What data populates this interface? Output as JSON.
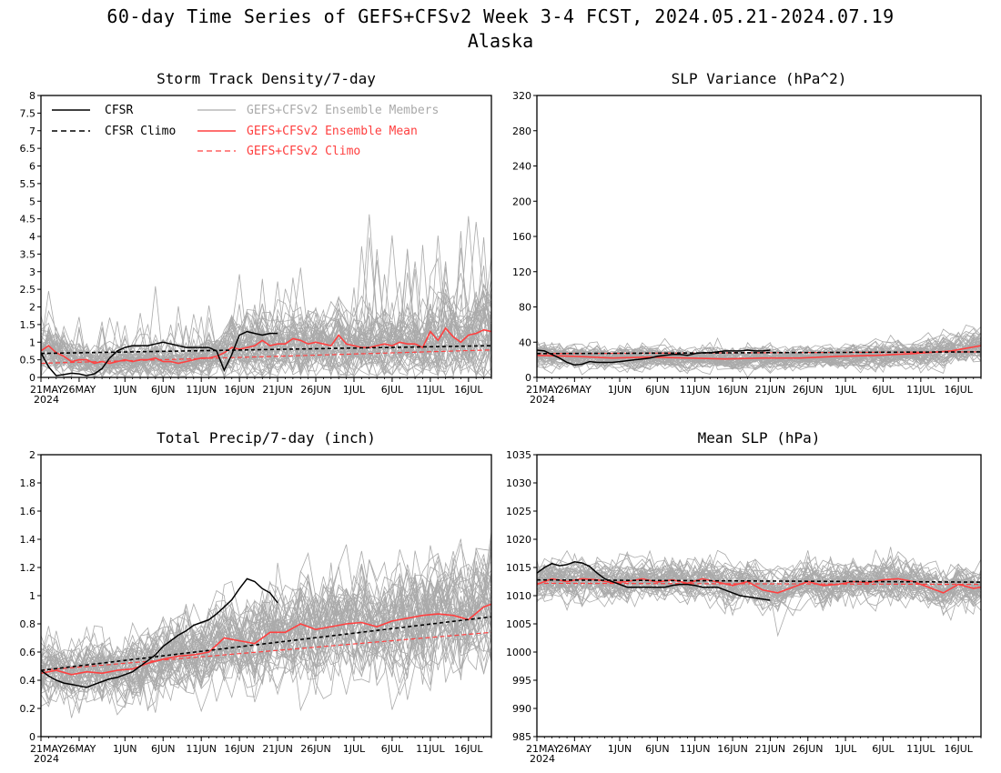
{
  "title": "60-day Time Series of GEFS+CFSv2 Week 3-4 FCST, 2024.05.21-2024.07.19",
  "region": "Alaska",
  "colors": {
    "cfsr": "#000000",
    "members": "#aaaaaa",
    "ens_mean": "#ff4040",
    "gefs_climo": "#ff4040"
  },
  "legend": {
    "cfsr": "CFSR",
    "cfsr_climo": "CFSR Climo",
    "members": "GEFS+CFSv2 Ensemble Members",
    "ens_mean": "GEFS+CFSv2 Ensemble Mean",
    "gefs_climo": "GEFS+CFSv2 Climo",
    "placement": "top-left"
  },
  "x_axis": {
    "ticks": [
      {
        "day": 0,
        "label": "21MAY"
      },
      {
        "day": 5,
        "label": "26MAY"
      },
      {
        "day": 11,
        "label": "1JUN"
      },
      {
        "day": 16,
        "label": "6JUN"
      },
      {
        "day": 21,
        "label": "11JUN"
      },
      {
        "day": 26,
        "label": "16JUN"
      },
      {
        "day": 31,
        "label": "21JUN"
      },
      {
        "day": 36,
        "label": "26JUN"
      },
      {
        "day": 41,
        "label": "1JUL"
      },
      {
        "day": 46,
        "label": "6JUL"
      },
      {
        "day": 51,
        "label": "11JUL"
      },
      {
        "day": 56,
        "label": "16JUL"
      }
    ],
    "year_label": "2024",
    "range": [
      0,
      59
    ]
  },
  "chart_data": [
    {
      "type": "line",
      "title": "Storm Track Density/7-day",
      "ylim": [
        0,
        8
      ],
      "yticks": [
        0,
        0.5,
        1,
        1.5,
        2,
        2.5,
        3,
        3.5,
        4,
        4.5,
        5,
        5.5,
        6,
        6.5,
        7,
        7.5,
        8
      ],
      "show_legend": true,
      "series": {
        "cfsr": {
          "x": [
            0,
            1,
            2,
            3,
            4,
            5,
            6,
            7,
            8,
            9,
            10,
            11,
            12,
            13,
            14,
            15,
            16,
            17,
            18,
            19,
            20,
            21,
            22,
            23,
            24,
            25,
            26,
            27,
            28,
            29,
            30,
            31
          ],
          "y": [
            0.7,
            0.3,
            0.05,
            0.08,
            0.12,
            0.1,
            0.05,
            0.1,
            0.25,
            0.55,
            0.75,
            0.85,
            0.9,
            0.9,
            0.9,
            0.95,
            1.0,
            0.95,
            0.9,
            0.85,
            0.85,
            0.85,
            0.85,
            0.75,
            0.2,
            0.65,
            1.2,
            1.3,
            1.25,
            1.2,
            1.25,
            1.25
          ]
        },
        "cfsr_climo": {
          "x": [
            0,
            59
          ],
          "y": [
            0.68,
            0.9
          ]
        },
        "ens_mean": {
          "x": [
            0,
            1,
            2,
            3,
            4,
            5,
            6,
            7,
            8,
            9,
            10,
            11,
            12,
            13,
            14,
            15,
            16,
            17,
            18,
            19,
            20,
            21,
            22,
            23,
            24,
            25,
            26,
            27,
            28,
            29,
            30,
            31,
            32,
            33,
            34,
            35,
            36,
            37,
            38,
            39,
            40,
            41,
            42,
            43,
            44,
            45,
            46,
            47,
            48,
            49,
            50,
            51,
            52,
            53,
            54,
            55,
            56,
            57,
            58,
            59
          ],
          "y": [
            0.75,
            0.9,
            0.7,
            0.6,
            0.45,
            0.5,
            0.5,
            0.4,
            0.45,
            0.4,
            0.45,
            0.5,
            0.45,
            0.5,
            0.5,
            0.55,
            0.45,
            0.45,
            0.4,
            0.45,
            0.5,
            0.55,
            0.55,
            0.6,
            0.7,
            0.85,
            0.8,
            0.85,
            0.9,
            1.05,
            0.9,
            0.95,
            0.95,
            1.1,
            1.05,
            0.95,
            1.0,
            0.95,
            0.9,
            1.2,
            0.95,
            0.9,
            0.85,
            0.85,
            0.9,
            0.95,
            0.9,
            1.0,
            0.95,
            0.95,
            0.85,
            1.3,
            1.05,
            1.4,
            1.15,
            1.0,
            1.2,
            1.25,
            1.35,
            1.3
          ]
        },
        "gefs_climo": {
          "x": [
            0,
            59
          ],
          "y": [
            0.4,
            0.78
          ]
        },
        "members": {
          "n": 48,
          "spread": 0.42,
          "seed": 101
        }
      }
    },
    {
      "type": "line",
      "title": "SLP Variance (hPa^2)",
      "ylim": [
        0,
        320
      ],
      "yticks": [
        0,
        40,
        80,
        120,
        160,
        200,
        240,
        280,
        320
      ],
      "show_legend": false,
      "series": {
        "cfsr": {
          "x": [
            0,
            1,
            2,
            3,
            4,
            5,
            6,
            7,
            8,
            9,
            10,
            11,
            12,
            13,
            14,
            15,
            16,
            17,
            18,
            19,
            20,
            21,
            22,
            23,
            24,
            25,
            26,
            27,
            28,
            29,
            30,
            31
          ],
          "y": [
            31,
            30,
            26,
            22,
            17,
            14,
            15,
            18,
            17,
            17,
            17,
            18,
            19,
            20,
            21,
            22,
            24,
            25,
            26,
            26,
            25,
            27,
            28,
            28,
            29,
            30,
            30,
            30,
            31,
            30,
            30,
            31
          ]
        },
        "cfsr_climo": {
          "x": [
            0,
            59
          ],
          "y": [
            27,
            29
          ]
        },
        "ens_mean": {
          "x": [
            0,
            5,
            10,
            15,
            20,
            25,
            30,
            35,
            40,
            45,
            50,
            55,
            59
          ],
          "y": [
            25,
            24,
            22,
            23,
            22,
            21,
            22,
            22,
            24,
            25,
            27,
            30,
            36
          ]
        },
        "gefs_climo": {
          "x": [
            0,
            59
          ],
          "y": [
            27,
            29
          ]
        },
        "members": {
          "n": 48,
          "spread": 0.38,
          "seed": 202
        }
      }
    },
    {
      "type": "line",
      "title": "Total Precip/7-day (inch)",
      "ylim": [
        0,
        2
      ],
      "yticks": [
        0,
        0.2,
        0.4,
        0.6,
        0.8,
        1,
        1.2,
        1.4,
        1.6,
        1.8,
        2
      ],
      "show_legend": false,
      "series": {
        "cfsr": {
          "x": [
            0,
            1,
            2,
            3,
            4,
            5,
            6,
            7,
            8,
            9,
            10,
            11,
            12,
            13,
            14,
            15,
            16,
            17,
            18,
            19,
            20,
            21,
            22,
            23,
            24,
            25,
            26,
            27,
            28,
            29,
            30,
            31
          ],
          "y": [
            0.47,
            0.43,
            0.4,
            0.38,
            0.37,
            0.36,
            0.35,
            0.37,
            0.39,
            0.41,
            0.42,
            0.44,
            0.46,
            0.5,
            0.54,
            0.58,
            0.64,
            0.68,
            0.72,
            0.75,
            0.79,
            0.81,
            0.83,
            0.87,
            0.92,
            0.97,
            1.05,
            1.12,
            1.1,
            1.05,
            1.02,
            0.95
          ]
        },
        "cfsr_climo": {
          "x": [
            0,
            59
          ],
          "y": [
            0.47,
            0.85
          ]
        },
        "ens_mean": {
          "x": [
            0,
            2,
            4,
            6,
            8,
            10,
            12,
            14,
            16,
            18,
            20,
            22,
            24,
            26,
            28,
            30,
            32,
            34,
            36,
            38,
            40,
            42,
            44,
            46,
            48,
            50,
            52,
            54,
            56,
            58,
            59
          ],
          "y": [
            0.45,
            0.47,
            0.44,
            0.46,
            0.45,
            0.47,
            0.48,
            0.52,
            0.55,
            0.57,
            0.58,
            0.6,
            0.7,
            0.68,
            0.66,
            0.74,
            0.74,
            0.8,
            0.76,
            0.78,
            0.8,
            0.81,
            0.78,
            0.82,
            0.84,
            0.86,
            0.87,
            0.86,
            0.83,
            0.92,
            0.94
          ]
        },
        "gefs_climo": {
          "x": [
            0,
            59
          ],
          "y": [
            0.47,
            0.74
          ]
        },
        "members": {
          "n": 48,
          "spread": 0.32,
          "seed": 303
        }
      }
    },
    {
      "type": "line",
      "title": "Mean SLP (hPa)",
      "ylim": [
        985,
        1035
      ],
      "yticks": [
        985,
        990,
        995,
        1000,
        1005,
        1010,
        1015,
        1020,
        1025,
        1030,
        1035
      ],
      "show_legend": false,
      "series": {
        "cfsr": {
          "x": [
            0,
            1,
            2,
            3,
            4,
            5,
            6,
            7,
            8,
            9,
            10,
            11,
            12,
            13,
            14,
            15,
            16,
            17,
            18,
            19,
            20,
            21,
            22,
            23,
            24,
            25,
            26,
            27,
            28,
            29,
            30,
            31
          ],
          "y": [
            1014,
            1015,
            1015.7,
            1015.3,
            1015.5,
            1016,
            1015.8,
            1015.2,
            1014,
            1013,
            1012.5,
            1012,
            1011.5,
            1011.5,
            1011.5,
            1011.5,
            1011.5,
            1011.5,
            1011.8,
            1012,
            1012,
            1011.8,
            1011.5,
            1011.5,
            1011.5,
            1011,
            1010.5,
            1010,
            1009.8,
            1009.6,
            1009.4,
            1009.2
          ]
        },
        "cfsr_climo": {
          "x": [
            0,
            59
          ],
          "y": [
            1012.8,
            1012.4
          ]
        },
        "ens_mean": {
          "x": [
            0,
            2,
            4,
            6,
            8,
            10,
            12,
            14,
            16,
            18,
            20,
            22,
            24,
            26,
            28,
            30,
            32,
            34,
            36,
            38,
            40,
            42,
            44,
            46,
            48,
            50,
            52,
            54,
            56,
            58,
            59
          ],
          "y": [
            1012,
            1013,
            1012.5,
            1013,
            1012.8,
            1012.3,
            1012.5,
            1013,
            1012.4,
            1012.8,
            1012.2,
            1013,
            1012.4,
            1011.8,
            1012.5,
            1011,
            1010.5,
            1011.5,
            1012.5,
            1011.8,
            1012,
            1012.5,
            1012.3,
            1012.8,
            1013,
            1012.5,
            1011.5,
            1010.5,
            1012,
            1011.3,
            1011.5
          ]
        },
        "gefs_climo": {
          "x": [
            0,
            59
          ],
          "y": [
            1012.2,
            1012
          ]
        },
        "members": {
          "n": 48,
          "spread": 0.45,
          "seed": 404
        }
      }
    }
  ]
}
